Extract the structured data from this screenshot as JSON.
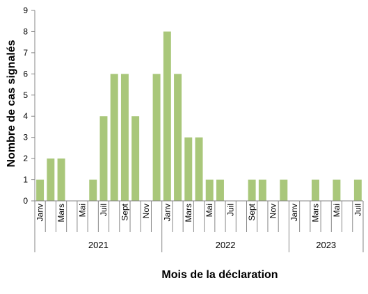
{
  "chart_data": {
    "type": "bar",
    "ylabel": "Nombre de cas signalés",
    "xlabel": "Mois de la déclaration",
    "ylim": [
      0,
      9
    ],
    "yticks": [
      0,
      1,
      2,
      3,
      4,
      5,
      6,
      7,
      8,
      9
    ],
    "grid": false,
    "bar_color": "#a9c77a",
    "categories": [
      "Janv 2021",
      "Févr 2021",
      "Mars 2021",
      "Avr 2021",
      "Mai 2021",
      "Juin 2021",
      "Juil 2021",
      "Août 2021",
      "Sept 2021",
      "Oct 2021",
      "Nov 2021",
      "Déc 2021",
      "Janv 2022",
      "Févr 2022",
      "Mars 2022",
      "Avr 2022",
      "Mai 2022",
      "Juin 2022",
      "Juil 2022",
      "Août 2022",
      "Sept 2022",
      "Oct 2022",
      "Nov 2022",
      "Déc 2022",
      "Janv 2023",
      "Févr 2023",
      "Mars 2023",
      "Avr 2023",
      "Mai 2023",
      "Juin 2023",
      "Juil 2023"
    ],
    "values": [
      1,
      2,
      2,
      0,
      0,
      1,
      4,
      6,
      6,
      4,
      0,
      6,
      8,
      6,
      3,
      3,
      1,
      1,
      0,
      0,
      1,
      1,
      0,
      1,
      0,
      0,
      1,
      0,
      1,
      0,
      1
    ],
    "month_tick_labels": [
      "Janv",
      "",
      "Mars",
      "",
      "Mai",
      "",
      "Juil",
      "",
      "Sept",
      "",
      "Nov",
      "",
      "Janv",
      "",
      "Mars",
      "",
      "Mai",
      "",
      "Juil",
      "",
      "Sept",
      "",
      "Nov",
      "",
      "Janv",
      "",
      "Mars",
      "",
      "Mai",
      "",
      "Juil"
    ],
    "year_groups": [
      {
        "label": "2021",
        "count": 12
      },
      {
        "label": "2022",
        "count": 12
      },
      {
        "label": "2023",
        "count": 7
      }
    ]
  }
}
